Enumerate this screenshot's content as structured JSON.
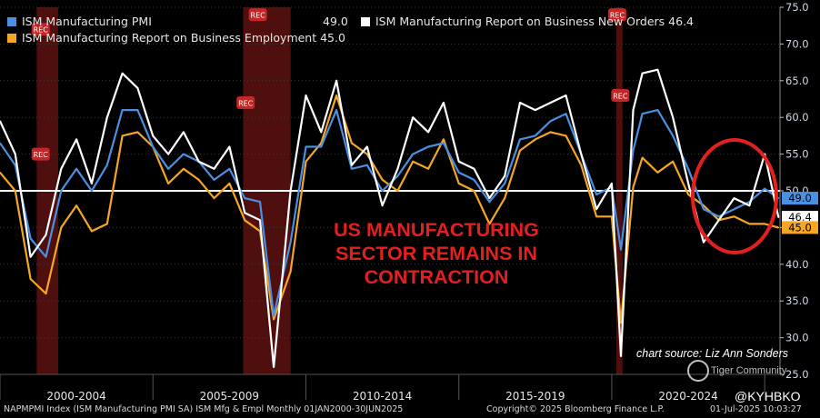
{
  "chart_data": {
    "type": "line",
    "title": "",
    "xlabel": "",
    "ylabel": "",
    "x_range": [
      2000.0,
      2025.5
    ],
    "ylim": [
      25,
      75
    ],
    "y_ticks": [
      25.0,
      30.0,
      35.0,
      40.0,
      45.0,
      50.0,
      55.0,
      60.0,
      65.0,
      70.0,
      75.0
    ],
    "y_tick_labels": [
      "25.0",
      "30.0",
      "35.0",
      "40.0",
      "45.0",
      "50.0",
      "55.0",
      "60.0",
      "65.0",
      "70.0",
      "75.0"
    ],
    "x_period_labels": [
      "2000-2004",
      "2005-2009",
      "2010-2014",
      "2015-2019",
      "2020-2024"
    ],
    "reference_line": 50,
    "recessions": [
      [
        2001.2,
        2001.9
      ],
      [
        2007.95,
        2009.5
      ],
      [
        2020.15,
        2020.35
      ]
    ],
    "rec_label": "REC",
    "series": [
      {
        "name": "ISM Manufacturing PMI",
        "legend_value": "49.0",
        "last_value_label": "49.0",
        "color": "#4a90e2",
        "x": [
          2000.0,
          2000.5,
          2001.0,
          2001.5,
          2002.0,
          2002.5,
          2003.0,
          2003.5,
          2004.0,
          2004.5,
          2005.0,
          2005.5,
          2006.0,
          2006.5,
          2007.0,
          2007.5,
          2008.0,
          2008.5,
          2008.95,
          2009.5,
          2010.0,
          2010.5,
          2011.0,
          2011.5,
          2012.0,
          2012.5,
          2013.0,
          2013.5,
          2014.0,
          2014.5,
          2015.0,
          2015.5,
          2016.0,
          2016.5,
          2017.0,
          2017.5,
          2018.0,
          2018.5,
          2019.0,
          2019.5,
          2020.0,
          2020.3,
          2020.7,
          2021.0,
          2021.5,
          2022.0,
          2022.5,
          2023.0,
          2023.5,
          2024.0,
          2024.5,
          2025.0,
          2025.45
        ],
        "values": [
          56.5,
          53.5,
          43.5,
          41.0,
          50.0,
          53.0,
          50.0,
          53.5,
          61.0,
          61.0,
          56.0,
          53.0,
          55.0,
          54.0,
          51.5,
          53.0,
          49.0,
          48.5,
          33.0,
          43.0,
          56.0,
          56.0,
          61.0,
          53.0,
          53.5,
          50.0,
          52.0,
          55.0,
          56.0,
          56.5,
          52.5,
          51.5,
          48.5,
          51.0,
          57.0,
          57.5,
          59.5,
          60.5,
          55.0,
          49.5,
          50.5,
          42.0,
          55.5,
          60.5,
          61.0,
          57.5,
          53.0,
          47.5,
          46.5,
          47.5,
          48.5,
          50.3,
          49.0
        ]
      },
      {
        "name": "ISM Manufacturing Report on Business New Orders",
        "legend_value": "46.4",
        "last_value_label": "46.4",
        "color": "#ffffff",
        "x": [
          2000.0,
          2000.5,
          2001.0,
          2001.5,
          2002.0,
          2002.5,
          2003.0,
          2003.5,
          2004.0,
          2004.5,
          2005.0,
          2005.5,
          2006.0,
          2006.5,
          2007.0,
          2007.5,
          2008.0,
          2008.5,
          2008.95,
          2009.5,
          2010.0,
          2010.5,
          2011.0,
          2011.5,
          2012.0,
          2012.5,
          2013.0,
          2013.5,
          2014.0,
          2014.5,
          2015.0,
          2015.5,
          2016.0,
          2016.5,
          2017.0,
          2017.5,
          2018.0,
          2018.5,
          2019.0,
          2019.5,
          2020.0,
          2020.3,
          2020.7,
          2021.0,
          2021.5,
          2022.0,
          2022.5,
          2023.0,
          2023.5,
          2024.0,
          2024.5,
          2025.0,
          2025.45
        ],
        "values": [
          59.5,
          55.0,
          41.0,
          44.0,
          53.0,
          57.0,
          51.0,
          60.0,
          66.0,
          64.0,
          57.5,
          55.0,
          58.0,
          54.0,
          53.0,
          56.0,
          47.0,
          46.0,
          26.0,
          50.0,
          63.0,
          58.0,
          65.0,
          53.5,
          56.0,
          48.0,
          53.0,
          60.0,
          58.0,
          62.0,
          54.0,
          53.0,
          49.0,
          52.0,
          62.0,
          61.0,
          62.0,
          63.0,
          55.0,
          47.5,
          51.0,
          27.5,
          61.0,
          66.0,
          66.5,
          60.0,
          51.0,
          43.0,
          46.0,
          49.0,
          48.0,
          55.0,
          46.4
        ]
      },
      {
        "name": "ISM Manufacturing Report on Business Employment",
        "legend_value": "45.0",
        "last_value_label": "45.0",
        "color": "#f5a623",
        "x": [
          2000.0,
          2000.5,
          2001.0,
          2001.5,
          2002.0,
          2002.5,
          2003.0,
          2003.5,
          2004.0,
          2004.5,
          2005.0,
          2005.5,
          2006.0,
          2006.5,
          2007.0,
          2007.5,
          2008.0,
          2008.5,
          2008.95,
          2009.5,
          2010.0,
          2010.5,
          2011.0,
          2011.5,
          2012.0,
          2012.5,
          2013.0,
          2013.5,
          2014.0,
          2014.5,
          2015.0,
          2015.5,
          2016.0,
          2016.5,
          2017.0,
          2017.5,
          2018.0,
          2018.5,
          2019.0,
          2019.5,
          2020.0,
          2020.3,
          2020.7,
          2021.0,
          2021.5,
          2022.0,
          2022.5,
          2023.0,
          2023.5,
          2024.0,
          2024.5,
          2025.0,
          2025.45
        ],
        "values": [
          52.5,
          50.0,
          38.0,
          36.0,
          45.0,
          48.0,
          44.5,
          45.5,
          57.5,
          58.0,
          56.0,
          51.0,
          53.0,
          51.5,
          49.0,
          51.0,
          46.0,
          44.5,
          32.5,
          39.0,
          54.0,
          56.5,
          63.0,
          56.5,
          55.0,
          51.5,
          50.0,
          54.0,
          53.0,
          57.0,
          51.0,
          50.0,
          45.5,
          49.0,
          55.5,
          57.0,
          58.0,
          57.5,
          53.5,
          46.5,
          46.5,
          32.0,
          50.5,
          54.5,
          52.5,
          54.0,
          49.5,
          48.0,
          46.0,
          46.5,
          45.5,
          45.5,
          45.0
        ]
      }
    ]
  },
  "legend": {
    "pmi_label": "ISM Manufacturing PMI",
    "pmi_value": "49.0",
    "neworders_label": "ISM Manufacturing Report on Business New Orders 46.4",
    "employment_label": "ISM Manufacturing Report on Business Employment 45.0"
  },
  "annotation": {
    "line1": "US MANUFACTURING",
    "line2": "SECTOR REMAINS IN",
    "line3": "CONTRACTION",
    "highlight_color": "#e4201e"
  },
  "source": "chart source: Liz Ann Sonders",
  "watermark": "Tiger Community",
  "handle": "@KYHBKO",
  "footer": {
    "ticker": "NAPMPMI Index (ISM Manufacturing PMI SA) ISM Mfg & Empl  Monthly 01JAN2000-30JUN2025",
    "copyright": "Copyright© 2025 Bloomberg Finance L.P.",
    "timestamp": "01-Jul-2025 10:03:27"
  },
  "colors": {
    "background": "#000000",
    "axis_bg": "#000000",
    "recession_band": "#6b1414",
    "reference_line": "#ffffff"
  }
}
